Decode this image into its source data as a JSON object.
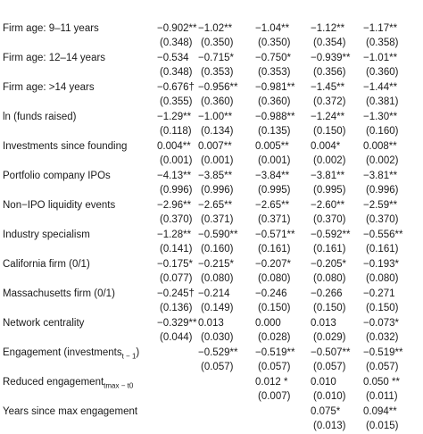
{
  "rows": [
    {
      "label": "",
      "coef": [
        "",
        "",
        "",
        "",
        ""
      ],
      "se": [
        "",
        "",
        "",
        "",
        ""
      ]
    },
    {
      "label": "Firm age: 9–11 years",
      "coef": [
        "−0.902**",
        "−1.02**",
        "−1.04**",
        "−1.12**",
        "−1.17**"
      ],
      "se": [
        "(0.348)",
        "(0.350)",
        "(0.350)",
        "(0.354)",
        "(0.358)"
      ]
    },
    {
      "label": "Firm age: 12–14 years",
      "coef": [
        "−0.534",
        "−0.715*",
        "−0.750*",
        "−0.939**",
        "−1.01**"
      ],
      "se": [
        "(0.348)",
        "(0.353)",
        "(0.353)",
        "(0.356)",
        "(0.360)"
      ]
    },
    {
      "label": "Firm age: >14 years",
      "coef": [
        "−0.676†",
        "−0.956**",
        "−0.981**",
        "−1.45**",
        "−1.44**"
      ],
      "se": [
        "(0.355)",
        "(0.360)",
        "(0.360)",
        "(0.372)",
        "(0.381)"
      ]
    },
    {
      "label": "ln (funds raised)",
      "coef": [
        "−1.29**",
        "−1.00**",
        "−0.988**",
        "−1.24**",
        "−1.30**"
      ],
      "se": [
        "(0.118)",
        "(0.134)",
        "(0.135)",
        "(0.150)",
        "(0.160)"
      ]
    },
    {
      "label": "Investments since founding",
      "coef": [
        "0.004**",
        "0.007**",
        "0.005**",
        "0.004*",
        "0.008**"
      ],
      "se": [
        "(0.001)",
        "(0.001)",
        "(0.001)",
        "(0.002)",
        "(0.002)"
      ]
    },
    {
      "label": "Portfolio company IPOs",
      "coef": [
        "−4.13**",
        "−3.85**",
        "−3.84**",
        "−3.81**",
        "−3.81**"
      ],
      "se": [
        "(0.996)",
        "(0.996)",
        "(0.995)",
        "(0.995)",
        "(0.996)"
      ]
    },
    {
      "label": "Non−IPO liquidity events",
      "coef": [
        "−2.96**",
        "−2.65**",
        "−2.65**",
        "−2.60**",
        "−2.59**"
      ],
      "se": [
        "(0.370)",
        "(0.371)",
        "(0.371)",
        "(0.370)",
        "(0.370)"
      ]
    },
    {
      "label": "Industry specialism",
      "coef": [
        "−1.28**",
        "−0.590**",
        "−0.571**",
        "−0.592**",
        "−0.556**"
      ],
      "se": [
        "(0.141)",
        "(0.160)",
        "(0.161)",
        "(0.161)",
        "(0.161)"
      ]
    },
    {
      "label": "California firm (0/1)",
      "coef": [
        "−0.175*",
        "−0.215*",
        "−0.207*",
        "−0.205*",
        "−0.193*"
      ],
      "se": [
        "(0.077)",
        "(0.080)",
        "(0.080)",
        "(0.080)",
        "(0.080)"
      ]
    },
    {
      "label": "Massachusetts firm (0/1)",
      "coef": [
        "−0.245†",
        "−0.214",
        "−0.246",
        "−0.266",
        "−0.271"
      ],
      "se": [
        "(0.136)",
        "(0.149)",
        "(0.150)",
        "(0.150)",
        "(0.150)"
      ]
    },
    {
      "label": "Network centrality",
      "coef": [
        "−0.329**",
        "0.013",
        "0.000",
        "0.013",
        "−0.073*"
      ],
      "se": [
        "(0.044)",
        "(0.030)",
        "(0.028)",
        "(0.029)",
        "(0.032)"
      ]
    },
    {
      "label": "Engagement (investments",
      "label_sub": "t − 1",
      "label_tail": ")",
      "coef": [
        "",
        "−0.529**",
        "−0.519**",
        "−0.507**",
        "−0.519**"
      ],
      "se": [
        "",
        "(0.057)",
        "(0.057)",
        "(0.057)",
        "(0.057)"
      ]
    },
    {
      "label": "Reduced engagement",
      "label_sub": "tmax − t0",
      "label_tail": "",
      "coef": [
        "",
        "",
        "0.012 *",
        "0.010",
        "0.050 **"
      ],
      "se": [
        "",
        "",
        "(0.007)",
        "(0.010)",
        "(0.011)"
      ]
    },
    {
      "label": "Years since max engagement",
      "coef": [
        "",
        "",
        "",
        "0.075*",
        "0.094**"
      ],
      "se": [
        "",
        "",
        "",
        "(0.013)",
        "(0.015)"
      ]
    }
  ]
}
